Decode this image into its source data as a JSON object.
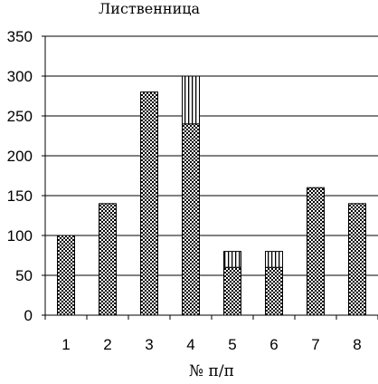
{
  "chart_data": {
    "type": "bar",
    "stacked": true,
    "title": "Лиственница",
    "xlabel": "№ п/п",
    "ylabel": "",
    "ylim": [
      0,
      350
    ],
    "yticks": [
      0,
      50,
      100,
      150,
      200,
      250,
      300,
      350
    ],
    "categories": [
      "1",
      "2",
      "3",
      "4",
      "5",
      "6",
      "7",
      "8"
    ],
    "series": [
      {
        "pattern": "checkered",
        "values": [
          100,
          140,
          280,
          240,
          60,
          60,
          160,
          140
        ]
      },
      {
        "pattern": "vertical-stripes",
        "values": [
          0,
          0,
          0,
          60,
          20,
          20,
          0,
          0
        ]
      }
    ],
    "grid": "horizontal",
    "legend": "none"
  }
}
